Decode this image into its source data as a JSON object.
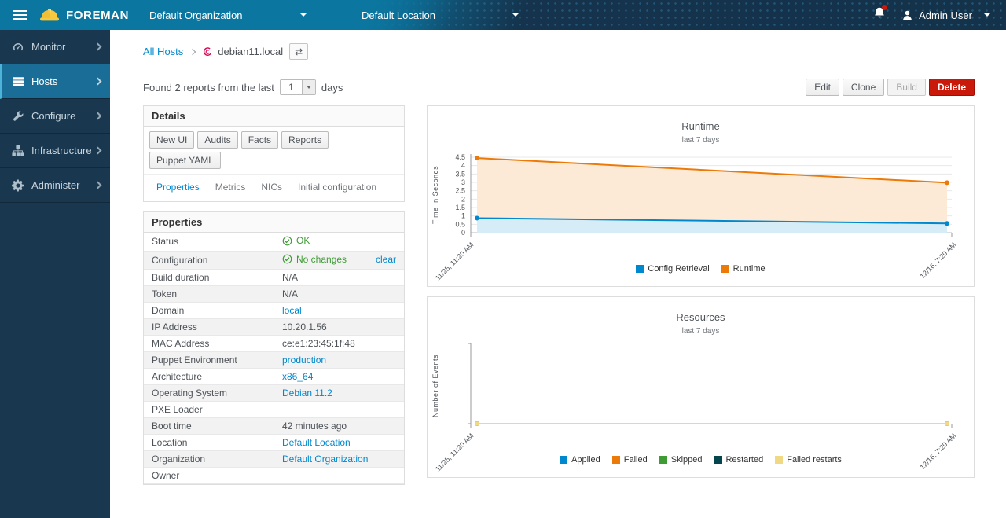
{
  "navbar": {
    "brand": "FOREMAN",
    "org_label": "Default Organization",
    "loc_label": "Default Location",
    "user_label": "Admin User"
  },
  "sidebar": {
    "items": [
      {
        "label": "Monitor",
        "icon": "tachometer-icon",
        "active": false
      },
      {
        "label": "Hosts",
        "icon": "server-icon",
        "active": true
      },
      {
        "label": "Configure",
        "icon": "wrench-icon",
        "active": false
      },
      {
        "label": "Infrastructure",
        "icon": "sitemap-icon",
        "active": false
      },
      {
        "label": "Administer",
        "icon": "gear-icon",
        "active": false
      }
    ]
  },
  "breadcrumb": {
    "root": "All Hosts",
    "current": "debian11.local"
  },
  "reports_bar": {
    "prefix": "Found 2 reports from the last",
    "select_value": "1",
    "suffix": "days"
  },
  "actions": [
    {
      "label": "Edit",
      "type": "default"
    },
    {
      "label": "Clone",
      "type": "default"
    },
    {
      "label": "Build",
      "type": "disabled"
    },
    {
      "label": "Delete",
      "type": "danger"
    }
  ],
  "details": {
    "title": "Details",
    "buttons": [
      "New UI",
      "Audits",
      "Facts",
      "Reports",
      "Puppet YAML"
    ],
    "tabs": [
      {
        "label": "Properties",
        "active": true
      },
      {
        "label": "Metrics",
        "active": false
      },
      {
        "label": "NICs",
        "active": false
      },
      {
        "label": "Initial configuration",
        "active": false
      }
    ]
  },
  "properties": {
    "title": "Properties",
    "rows": [
      {
        "label": "Status",
        "type": "status",
        "value": "OK"
      },
      {
        "label": "Configuration",
        "type": "status",
        "value": "No changes",
        "action": "clear"
      },
      {
        "label": "Build duration",
        "type": "text",
        "value": "N/A"
      },
      {
        "label": "Token",
        "type": "text",
        "value": "N/A"
      },
      {
        "label": "Domain",
        "type": "link",
        "value": "local"
      },
      {
        "label": "IP Address",
        "type": "text",
        "value": "10.20.1.56"
      },
      {
        "label": "MAC Address",
        "type": "text",
        "value": "ce:e1:23:45:1f:48"
      },
      {
        "label": "Puppet Environment",
        "type": "link",
        "value": "production"
      },
      {
        "label": "Architecture",
        "type": "link",
        "value": "x86_64"
      },
      {
        "label": "Operating System",
        "type": "link",
        "value": "Debian 11.2"
      },
      {
        "label": "PXE Loader",
        "type": "text",
        "value": ""
      },
      {
        "label": "Boot time",
        "type": "text",
        "value": "42 minutes ago"
      },
      {
        "label": "Location",
        "type": "link",
        "value": "Default Location"
      },
      {
        "label": "Organization",
        "type": "link",
        "value": "Default Organization"
      },
      {
        "label": "Owner",
        "type": "text",
        "value": ""
      }
    ]
  },
  "colors": {
    "navbar_teal": "#0b77a0",
    "navbar_dark": "#14324a",
    "sidebar_bg": "#19374f",
    "sidebar_active": "#1a6d96",
    "sidebar_active_border": "#4eb3d9",
    "link_blue": "#0088ce",
    "status_green": "#3f9c35",
    "danger_red": "#c9190b",
    "debian_red": "#d70751",
    "hardhat_yellow": "#f8c93e"
  },
  "chart_data": [
    {
      "type": "area",
      "title": "Runtime",
      "subtitle": "last 7 days",
      "ylabel": "Time in Seconds",
      "x_labels": [
        "11/25, 11:20 AM",
        "12/16, 7:20 AM"
      ],
      "ylim": [
        0,
        4.5
      ],
      "ytick_step": 0.5,
      "grid": true,
      "legend_position": "bottom",
      "series": [
        {
          "name": "Config Retrieval",
          "color": "#0088ce",
          "values": [
            0.87,
            0.55
          ]
        },
        {
          "name": "Runtime",
          "color": "#ec7a08",
          "values": [
            4.45,
            2.98
          ]
        }
      ]
    },
    {
      "type": "area",
      "title": "Resources",
      "subtitle": "last 7 days",
      "ylabel": "Number of Events",
      "x_labels": [
        "11/25, 11:20 AM",
        "12/16, 7:20 AM"
      ],
      "ylim": [
        0,
        1
      ],
      "show_yticks": false,
      "grid": false,
      "legend_position": "bottom",
      "series": [
        {
          "name": "Applied",
          "color": "#0088ce",
          "values": [
            0,
            0
          ]
        },
        {
          "name": "Failed",
          "color": "#ec7a08",
          "values": [
            0,
            0
          ]
        },
        {
          "name": "Skipped",
          "color": "#3f9c35",
          "values": [
            0,
            0
          ]
        },
        {
          "name": "Restarted",
          "color": "#05454e",
          "values": [
            0,
            0
          ]
        },
        {
          "name": "Failed restarts",
          "color": "#f0d884",
          "values": [
            0,
            0
          ]
        }
      ]
    }
  ]
}
